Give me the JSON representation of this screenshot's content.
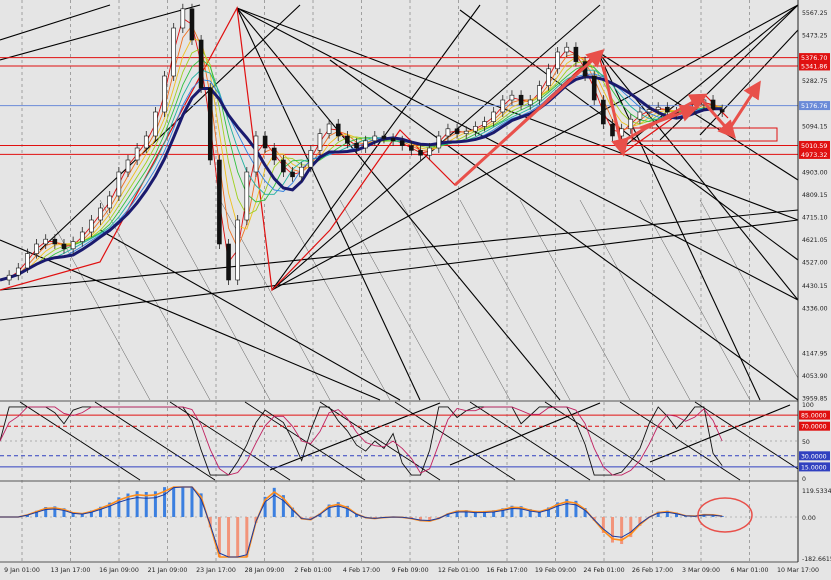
{
  "chart_data": [
    {
      "type": "line",
      "name_hint": "main",
      "x_labels": [
        "9 Jan 01:00",
        "13 Jan 17:00",
        "16 Jan 09:00",
        "21 Jan 09:00",
        "23 Jan 17:00",
        "28 Jan 09:00",
        "2 Feb 01:00",
        "4 Feb 17:00",
        "9 Feb 09:00",
        "12 Feb 01:00",
        "16 Feb 17:00",
        "19 Feb 09:00",
        "24 Feb 01:00",
        "26 Feb 17:00",
        "3 Mar 09:00",
        "6 Mar 01:00",
        "10 Mar 17:00"
      ],
      "y_ticks": [
        5567.25,
        5473.25,
        5376.7,
        5341.86,
        5282.75,
        5176.76,
        5094.15,
        5010.59,
        4973.32,
        4903.0,
        4809.15,
        4715.1,
        4621.05,
        4527.0,
        4430.15,
        4336.0,
        4147.95,
        4053.9,
        3959.85
      ],
      "price": {
        "close": [
          4450,
          4470,
          4500,
          4560,
          4600,
          4620,
          4600,
          4580,
          4610,
          4650,
          4700,
          4750,
          4800,
          4900,
          4950,
          5000,
          5050,
          5150,
          5300,
          5500,
          5580,
          5450,
          5250,
          4950,
          4600,
          4450,
          4700,
          4900,
          5050,
          5000,
          4950,
          4900,
          4880,
          4920,
          4990,
          5060,
          5100,
          5050,
          5020,
          5000,
          5030,
          5050,
          5040,
          5030,
          5010,
          4990,
          4970,
          5000,
          5050,
          5080,
          5060,
          5070,
          5090,
          5110,
          5150,
          5200,
          5220,
          5180,
          5200,
          5260,
          5330,
          5400,
          5420,
          5360,
          5300,
          5200,
          5100,
          5050,
          5080,
          5120,
          5150,
          5160,
          5170,
          5150,
          5140,
          5160,
          5180,
          5200,
          5160,
          5150
        ]
      },
      "colors": {
        "price": "#1a1a1a",
        "ma_slow": "#1a1a6e",
        "hline_red": "#e01010",
        "hline_blue": "#6a8ad8",
        "arrow": "#e8504a"
      },
      "price_labels": [
        {
          "text": "5376.70",
          "style": "red"
        },
        {
          "text": "5341.86",
          "style": "red"
        },
        {
          "text": "5176.76",
          "style": "blue"
        },
        {
          "text": "5010.59",
          "style": "red"
        },
        {
          "text": "4973.32",
          "style": "red"
        }
      ]
    },
    {
      "type": "line",
      "name_hint": "stochastic",
      "y_ticks": [
        "100",
        "50",
        "0"
      ],
      "levels": [
        {
          "text": "85.0000",
          "color": "#e01010",
          "style": "solid"
        },
        {
          "text": "70.0000",
          "color": "#e01010",
          "style": "dashed"
        },
        {
          "text": "30.0000",
          "color": "#3040c0",
          "style": "dashed"
        },
        {
          "text": "15.0000",
          "color": "#3040c0",
          "style": "solid"
        }
      ]
    },
    {
      "type": "bar",
      "name_hint": "macd",
      "y_ticks": [
        "119.5334",
        "0.00",
        "-182.6615"
      ]
    }
  ]
}
